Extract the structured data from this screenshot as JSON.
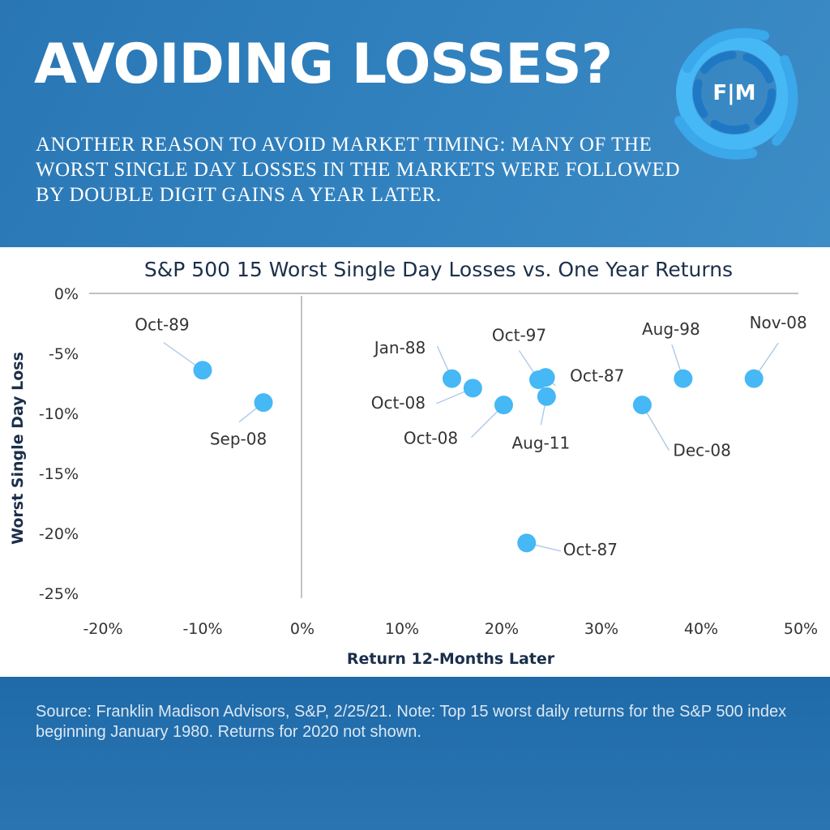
{
  "header": {
    "title": "AVOIDING LOSSES?",
    "subtitle": "ANOTHER REASON TO AVOID MARKET TIMING: MANY OF THE WORST SINGLE DAY LOSSES IN THE MARKETS WERE FOLLOWED BY DOUBLE DIGIT GAINS A YEAR LATER.",
    "logo_text": "F|M"
  },
  "footer": {
    "source": "Source: Franklin Madison Advisors, S&P, 2/25/21.  Note: Top 15 worst daily returns for the S&P 500 index beginning January 1980.  Returns for 2020 not shown."
  },
  "colors": {
    "header_bg": "#2f7fbd",
    "point": "#45b8f5",
    "footer_bg": "#1f6aa8",
    "title_text": "#1b2f4a"
  },
  "chart_data": {
    "type": "scatter",
    "title": "S&P 500 15 Worst Single Day Losses vs. One Year Returns",
    "xlabel": "Return 12-Months Later",
    "ylabel": "Worst Single Day Loss",
    "xlim": [
      -20,
      50
    ],
    "ylim": [
      -25,
      0
    ],
    "xticks": [
      "-20%",
      "-10%",
      "0%",
      "10%",
      "20%",
      "30%",
      "40%",
      "50%"
    ],
    "yticks": [
      "0%",
      "-5%",
      "-10%",
      "-15%",
      "-20%",
      "-25%"
    ],
    "grid": false,
    "points": [
      {
        "label": "Oct-89",
        "x": -10.0,
        "y": -6.4
      },
      {
        "label": "Sep-08",
        "x": -3.9,
        "y": -9.1
      },
      {
        "label": "Jan-88",
        "x": 15.0,
        "y": -7.1
      },
      {
        "label": "Oct-08",
        "x": 17.1,
        "y": -7.9
      },
      {
        "label": "Oct-08",
        "x": 20.2,
        "y": -9.3
      },
      {
        "label": "Oct-97",
        "x": 23.7,
        "y": -7.2
      },
      {
        "label": "Oct-87",
        "x": 24.4,
        "y": -7.0
      },
      {
        "label": "Aug-11",
        "x": 24.5,
        "y": -8.6
      },
      {
        "label": "Dec-08",
        "x": 34.1,
        "y": -9.3
      },
      {
        "label": "Aug-98",
        "x": 38.2,
        "y": -7.1
      },
      {
        "label": "Nov-08",
        "x": 45.3,
        "y": -7.1
      },
      {
        "label": "Oct-87",
        "x": 22.5,
        "y": -20.8
      }
    ]
  }
}
